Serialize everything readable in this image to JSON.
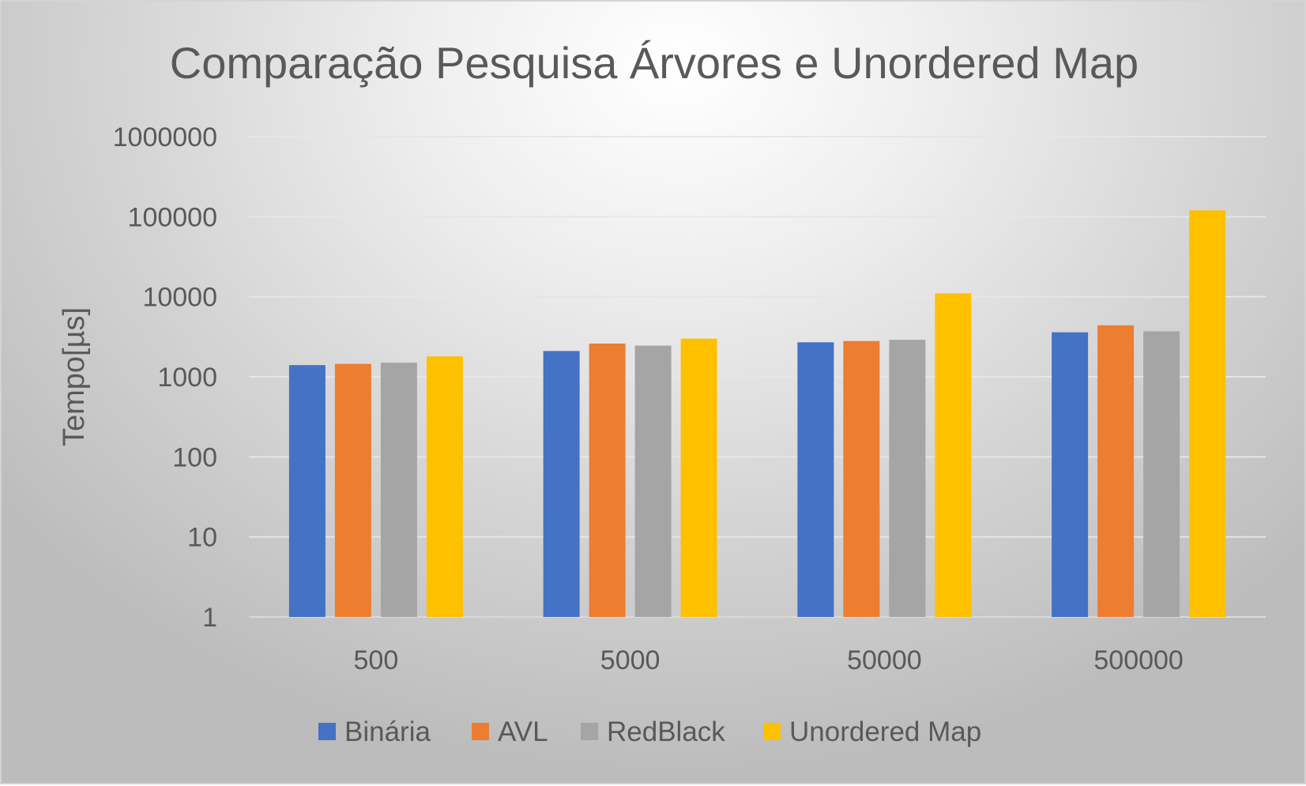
{
  "chart_data": {
    "type": "bar",
    "title": "Comparação Pesquisa Árvores e Unordered Map",
    "xlabel": "",
    "ylabel": "Tempo[µs]",
    "yscale": "log",
    "ylim": [
      1,
      1000000
    ],
    "yticks": [
      "1000000",
      "100000",
      "10000",
      "1000",
      "100",
      "10",
      "1"
    ],
    "categories": [
      "500",
      "5000",
      "50000",
      "500000"
    ],
    "series": [
      {
        "name": "Binária",
        "color": "#4472C4",
        "values": [
          1400,
          2100,
          2700,
          3600
        ]
      },
      {
        "name": "AVL",
        "color": "#ED7D31",
        "values": [
          1450,
          2600,
          2800,
          4400
        ]
      },
      {
        "name": "RedBlack",
        "color": "#A5A5A5",
        "values": [
          1500,
          2450,
          2900,
          3700
        ]
      },
      {
        "name": "Unordered Map",
        "color": "#FFC000",
        "values": [
          1800,
          3000,
          11000,
          120000
        ]
      }
    ],
    "grid": true,
    "legend_position": "bottom"
  }
}
